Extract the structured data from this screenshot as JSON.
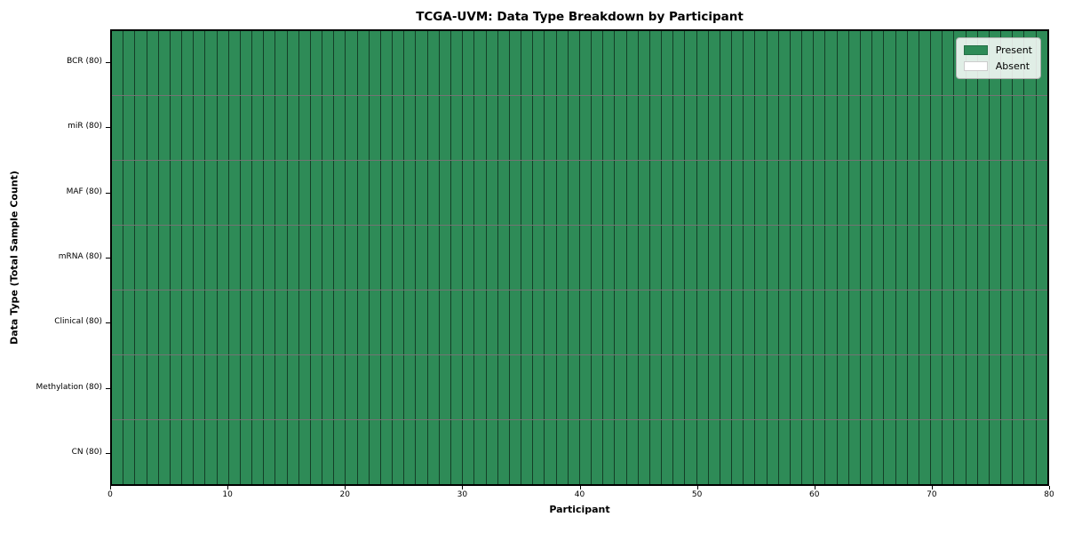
{
  "chart_data": {
    "type": "heatmap",
    "title": "TCGA-UVM: Data Type Breakdown by Participant",
    "xlabel": "Participant",
    "ylabel": "Data Type (Total Sample Count)",
    "xlim": [
      0,
      80
    ],
    "x_ticks": [
      0,
      10,
      20,
      30,
      40,
      50,
      60,
      70,
      80
    ],
    "n_participants": 80,
    "rows": [
      {
        "label": "BCR (80)",
        "data_type": "BCR",
        "total_samples": 80,
        "present_count": 80,
        "absent_count": 0
      },
      {
        "label": "miR (80)",
        "data_type": "miR",
        "total_samples": 80,
        "present_count": 80,
        "absent_count": 0
      },
      {
        "label": "MAF (80)",
        "data_type": "MAF",
        "total_samples": 80,
        "present_count": 80,
        "absent_count": 0
      },
      {
        "label": "mRNA (80)",
        "data_type": "mRNA",
        "total_samples": 80,
        "present_count": 80,
        "absent_count": 0
      },
      {
        "label": "Clinical (80)",
        "data_type": "Clinical",
        "total_samples": 80,
        "present_count": 80,
        "absent_count": 0
      },
      {
        "label": "Methylation (80)",
        "data_type": "Methylation",
        "total_samples": 80,
        "present_count": 80,
        "absent_count": 0
      },
      {
        "label": "CN (80)",
        "data_type": "CN",
        "total_samples": 80,
        "present_count": 80,
        "absent_count": 0
      }
    ],
    "legend": {
      "position": "upper right",
      "entries": [
        {
          "label": "Present",
          "color": "#2e8b57"
        },
        {
          "label": "Absent",
          "color": "#ffffff"
        }
      ]
    },
    "colors": {
      "present": "#2e8b57",
      "absent": "#ffffff",
      "cell_border": "rgba(0,0,0,0.55)",
      "spine": "#000000",
      "legend_border": "#b0b0b0",
      "background": "#ffffff"
    }
  }
}
